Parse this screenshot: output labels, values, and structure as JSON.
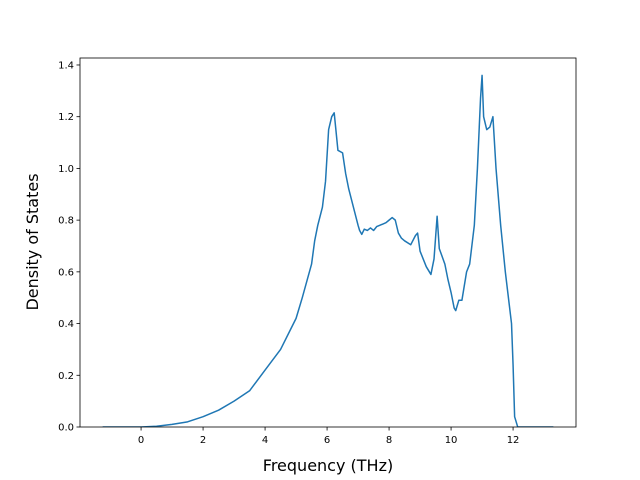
{
  "chart_data": {
    "type": "line",
    "xlabel": "Frequency (THz)",
    "ylabel": "Density of States",
    "x": [
      -1.24,
      0,
      0.5,
      1,
      1.5,
      2,
      2.5,
      3,
      3.5,
      4,
      4.5,
      5,
      5.2,
      5.5,
      5.6,
      5.7,
      5.85,
      5.95,
      6.05,
      6.15,
      6.23,
      6.35,
      6.5,
      6.6,
      6.7,
      6.85,
      7.0,
      7.05,
      7.12,
      7.2,
      7.3,
      7.4,
      7.5,
      7.6,
      7.7,
      7.8,
      7.9,
      8.0,
      8.1,
      8.2,
      8.3,
      8.4,
      8.5,
      8.7,
      8.85,
      8.92,
      9.0,
      9.2,
      9.35,
      9.45,
      9.55,
      9.62,
      9.8,
      9.9,
      10.0,
      10.1,
      10.15,
      10.25,
      10.35,
      10.5,
      10.6,
      10.75,
      10.85,
      10.95,
      11.0,
      11.05,
      11.15,
      11.25,
      11.35,
      11.45,
      11.6,
      11.75,
      11.95,
      12.0,
      12.05,
      12.15,
      13.3
    ],
    "series": [
      {
        "name": "DOS",
        "color": "#1f77b4",
        "values": [
          0,
          0,
          0.003,
          0.01,
          0.02,
          0.04,
          0.065,
          0.1,
          0.14,
          0.22,
          0.3,
          0.42,
          0.5,
          0.63,
          0.72,
          0.78,
          0.85,
          0.95,
          1.15,
          1.2,
          1.215,
          1.07,
          1.06,
          0.98,
          0.92,
          0.85,
          0.78,
          0.76,
          0.745,
          0.765,
          0.76,
          0.77,
          0.76,
          0.775,
          0.78,
          0.785,
          0.79,
          0.8,
          0.81,
          0.8,
          0.75,
          0.73,
          0.72,
          0.705,
          0.74,
          0.75,
          0.68,
          0.62,
          0.59,
          0.65,
          0.815,
          0.69,
          0.63,
          0.57,
          0.52,
          0.46,
          0.45,
          0.49,
          0.49,
          0.6,
          0.63,
          0.78,
          1.0,
          1.27,
          1.36,
          1.2,
          1.15,
          1.16,
          1.2,
          1.0,
          0.78,
          0.6,
          0.4,
          0.24,
          0.04,
          0,
          0
        ]
      }
    ],
    "xlim": [
      -1.97,
      14.03
    ],
    "ylim": [
      0,
      1.427
    ],
    "xticks": [
      0,
      2,
      4,
      6,
      8,
      10,
      12
    ],
    "yticks": [
      {
        "value": 0,
        "label": "0.0"
      },
      0.2,
      0.4,
      0.6,
      0.8,
      {
        "value": 1,
        "label": "1.0"
      },
      1.2,
      1.4
    ]
  }
}
